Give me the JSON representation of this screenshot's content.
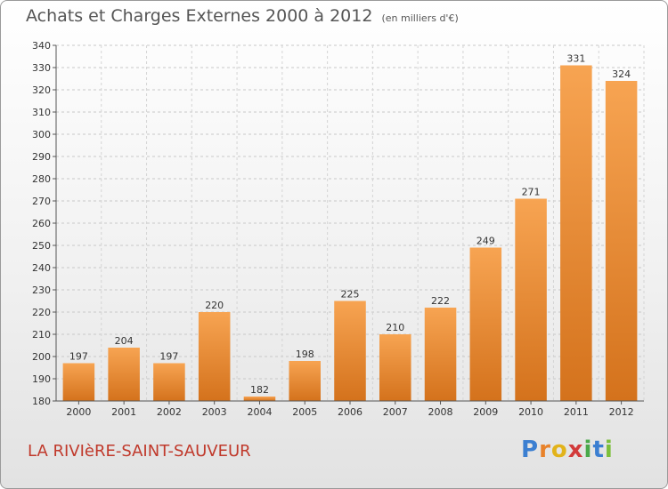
{
  "header": {
    "title": "Achats et Charges Externes 2000 à 2012",
    "unit": "(en milliers d'€)"
  },
  "footer": {
    "commune": "LA RIVIèRE-SAINT-SAUVEUR",
    "logo_letters": [
      "P",
      "r",
      "o",
      "x",
      "i",
      "t",
      "i"
    ],
    "logo_colors": [
      "#3b7fd1",
      "#e8822a",
      "#e2b31a",
      "#d23a3a",
      "#4aa84a",
      "#3b7fd1",
      "#7cbf3a"
    ]
  },
  "chart_data": {
    "type": "bar",
    "title": "Achats et Charges Externes 2000 à 2012",
    "subtitle": "(en milliers d'€)",
    "categories": [
      "2000",
      "2001",
      "2002",
      "2003",
      "2004",
      "2005",
      "2006",
      "2007",
      "2008",
      "2009",
      "2010",
      "2011",
      "2012"
    ],
    "values": [
      197,
      204,
      197,
      220,
      182,
      198,
      225,
      210,
      222,
      249,
      271,
      331,
      324
    ],
    "ylim": [
      180,
      340
    ],
    "yticks": [
      180,
      190,
      200,
      210,
      220,
      230,
      240,
      250,
      260,
      270,
      280,
      290,
      300,
      310,
      320,
      330,
      340
    ],
    "grid": true,
    "bar_color_top": "#f7a452",
    "bar_color_bottom": "#d4721c"
  }
}
